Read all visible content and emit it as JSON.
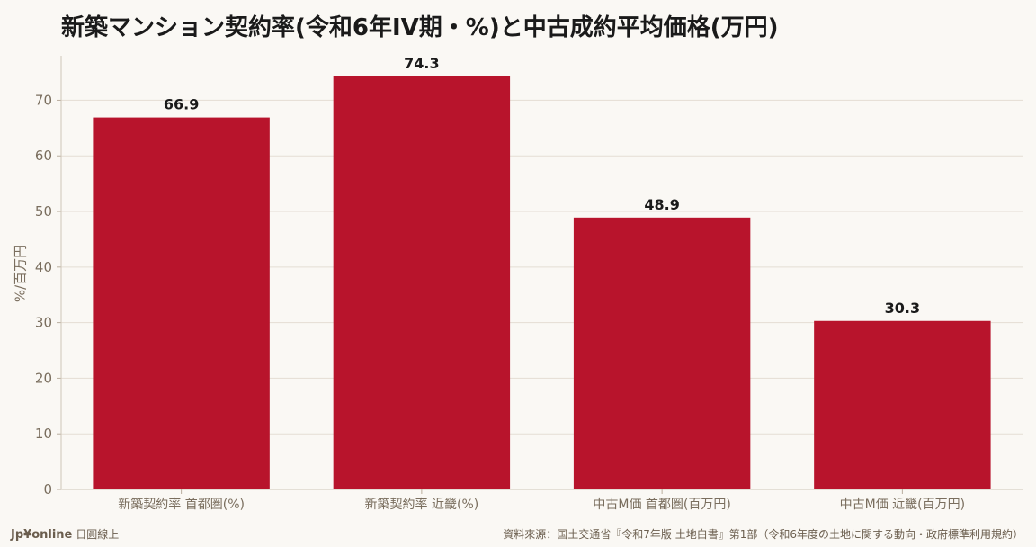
{
  "page": {
    "title": "新築マンション契約率(令和6年IV期・%)と中古成約平均価格(万円)",
    "brand": "Jp¥online",
    "brand_sub": "日圓線上",
    "source": "資料來源：国土交通省『令和7年版 土地白書』第1部（令和6年度の土地に関する動向・政府標準利用規約）"
  },
  "chart_data": {
    "type": "bar",
    "categories": [
      "新築契約率 首都圏(%)",
      "新築契約率 近畿(%)",
      "中古M価 首都圏(百万円)",
      "中古M価 近畿(百万円)"
    ],
    "values": [
      66.9,
      74.3,
      48.9,
      30.3
    ],
    "data_labels": [
      "66.9",
      "74.3",
      "48.9",
      "30.3"
    ],
    "ylabel": "%/百万円",
    "ylim": [
      0,
      78
    ],
    "yticks": [
      0,
      10,
      20,
      30,
      40,
      50,
      60,
      70
    ],
    "grid": true,
    "colors": {
      "bar": "#b8142c",
      "grid": "#e4ddd3",
      "tick": "#7a6e5e",
      "value_label": "#1a1a1a"
    }
  }
}
